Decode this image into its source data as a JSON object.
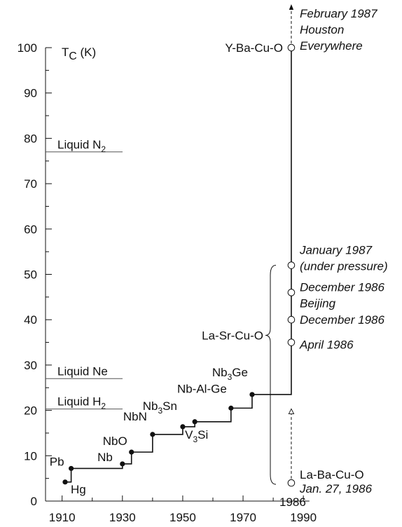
{
  "chart_data": {
    "type": "step",
    "ylabel": [
      "T",
      "C",
      " (K)"
    ],
    "xlim": [
      1904.5,
      1992
    ],
    "xticks": [
      1910,
      1930,
      1950,
      1970,
      1990
    ],
    "xminorticks": [
      1920,
      1940,
      1960,
      1980
    ],
    "ylim": [
      0,
      100
    ],
    "yticks": [
      0,
      10,
      20,
      30,
      40,
      50,
      60,
      70,
      80,
      90,
      100
    ],
    "yminorticks": [
      5,
      15,
      25,
      35,
      45,
      55,
      65,
      75,
      85,
      95
    ],
    "color": "#111111",
    "references": [
      {
        "label": [
          "Liquid N",
          "2"
        ],
        "value": 77
      },
      {
        "label": [
          "Liquid Ne"
        ],
        "value": 27
      },
      {
        "label": [
          "Liquid H",
          "2"
        ],
        "value": 20.3
      }
    ],
    "materials": {
      "x": [
        1911,
        1913,
        1930,
        1933,
        1940,
        1950,
        1954,
        1966,
        1973
      ],
      "values": [
        4.2,
        7.2,
        8.2,
        10.8,
        14.7,
        16.4,
        17.5,
        20.5,
        23.5
      ],
      "labels": [
        [
          "Hg"
        ],
        [
          "Pb"
        ],
        [
          "Nb"
        ],
        [
          "NbO"
        ],
        [
          "NbN"
        ],
        [
          "Nb",
          "3",
          "Sn"
        ],
        [
          "V",
          "3",
          "Si"
        ],
        [
          "Nb-Al-Ge"
        ],
        [
          "Nb",
          "3",
          "Ge"
        ]
      ]
    },
    "discoveries": {
      "x": 1986,
      "values": [
        4,
        35,
        40,
        46,
        52,
        100
      ]
    },
    "annotations": {
      "ybco": "Y-Ba-Cu-O",
      "lsco": "La-Sr-Cu-O",
      "lbco": "La-Ba-Cu-O",
      "feb87": "February 1987",
      "houston": "Houston",
      "everywhere": "Everywhere",
      "jan87": "January 1987",
      "pressure": "(under pressure)",
      "dec86a": "December 1986",
      "beijing": "Beijing",
      "dec86b": "December 1986",
      "apr86": "April 1986",
      "jan86": "Jan. 27, 1986"
    }
  }
}
